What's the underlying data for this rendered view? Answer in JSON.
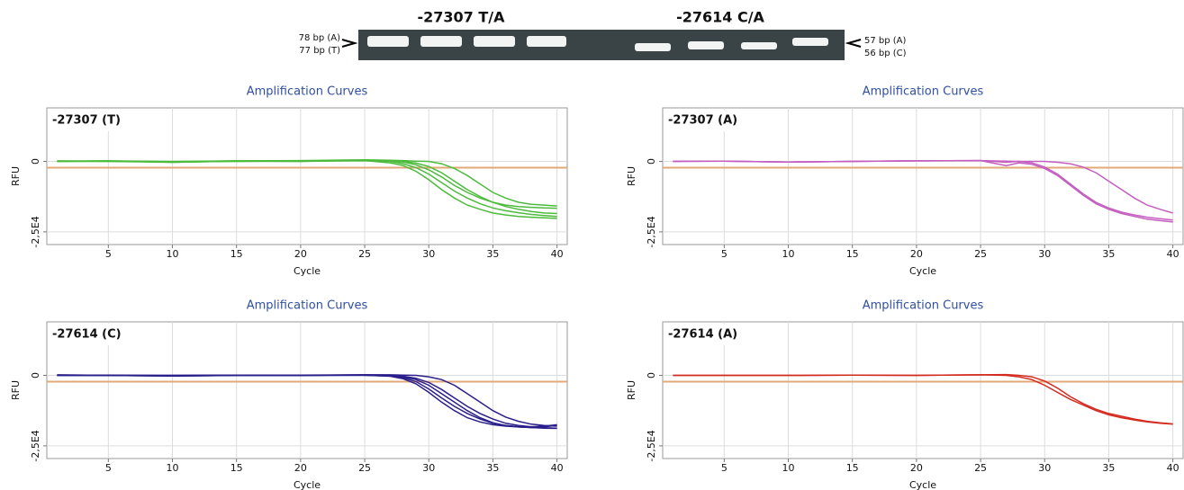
{
  "gel": {
    "headings": [
      "-27307 T/A",
      "-27614 C/A"
    ],
    "left_labels": [
      "78 bp (A)",
      "77 bp (T)"
    ],
    "right_labels": [
      "57 bp (A)",
      "56 bp (C)"
    ]
  },
  "chart_data": [
    {
      "type": "line",
      "title": "Amplification Curves",
      "label": "-27307 (T)",
      "xlabel": "Cycle",
      "ylabel": "RFU",
      "x": [
        1,
        5,
        10,
        15,
        20,
        25,
        27,
        28,
        29,
        30,
        31,
        32,
        33,
        34,
        35,
        36,
        37,
        38,
        39,
        40
      ],
      "xlim": [
        0.2,
        40.8
      ],
      "xticks": [
        5,
        10,
        15,
        20,
        25,
        30,
        35,
        40
      ],
      "ylim": [
        -29500,
        19000
      ],
      "yticks": [
        0,
        {
          "value": -25000,
          "label": "-2,5E4"
        }
      ],
      "threshold": -2200,
      "threshold_color": "#e2a878",
      "grid": true,
      "series": [
        {
          "color": "#4cbb3c",
          "values": [
            0,
            200,
            -300,
            100,
            0,
            300,
            -500,
            -1500,
            -3500,
            -6500,
            -10000,
            -13000,
            -15500,
            -17000,
            -18300,
            -19000,
            -19500,
            -19800,
            -20000,
            -20200
          ]
        },
        {
          "color": "#4cbb3c",
          "values": [
            0,
            100,
            -200,
            200,
            100,
            400,
            0,
            -800,
            -2200,
            -4500,
            -7500,
            -10500,
            -13000,
            -15000,
            -16500,
            -17500,
            -18200,
            -18800,
            -19200,
            -19500
          ]
        },
        {
          "color": "#4cbb3c",
          "values": [
            200,
            0,
            -100,
            0,
            200,
            200,
            300,
            -200,
            -1200,
            -3000,
            -5500,
            -8500,
            -11000,
            -13000,
            -14500,
            -15500,
            -16000,
            -16300,
            -16500,
            -16600
          ]
        },
        {
          "color": "#4cbb3c",
          "values": [
            0,
            0,
            -300,
            100,
            0,
            500,
            200,
            0,
            -600,
            -1800,
            -4000,
            -7000,
            -10000,
            -12500,
            -14500,
            -16000,
            -17000,
            -17800,
            -18300,
            -18500
          ]
        },
        {
          "color": "#4cbb3c",
          "values": [
            100,
            200,
            0,
            200,
            300,
            600,
            400,
            300,
            100,
            0,
            -800,
            -2500,
            -5000,
            -8000,
            -11000,
            -13000,
            -14500,
            -15200,
            -15500,
            -15800
          ]
        }
      ]
    },
    {
      "type": "line",
      "title": "Amplification Curves",
      "label": "-27307 (A)",
      "xlabel": "Cycle",
      "ylabel": "RFU",
      "x": [
        1,
        5,
        10,
        15,
        20,
        25,
        27,
        28,
        29,
        30,
        31,
        32,
        33,
        34,
        35,
        36,
        37,
        38,
        39,
        40
      ],
      "xlim": [
        0.2,
        40.8
      ],
      "xticks": [
        5,
        10,
        15,
        20,
        25,
        30,
        35,
        40
      ],
      "ylim": [
        -29500,
        19000
      ],
      "yticks": [
        0,
        {
          "value": -25000,
          "label": "-2,5E4"
        }
      ],
      "threshold": -2200,
      "threshold_color": "#e2a878",
      "grid": true,
      "series": [
        {
          "color": "#c45ec0",
          "values": [
            0,
            100,
            -200,
            0,
            200,
            300,
            -300,
            0,
            -500,
            -2000,
            -4500,
            -8000,
            -11500,
            -14500,
            -16500,
            -18000,
            -19000,
            -19800,
            -20300,
            -20800
          ]
        },
        {
          "color": "#c45ec0",
          "values": [
            0,
            100,
            -200,
            0,
            200,
            300,
            -1500,
            -500,
            -1000,
            -2500,
            -5000,
            -8500,
            -12000,
            -15000,
            -17000,
            -18500,
            -19500,
            -20500,
            -21000,
            -21500
          ]
        },
        {
          "color": "#c45ec0",
          "values": [
            0,
            100,
            -200,
            0,
            200,
            300,
            100,
            0,
            0,
            0,
            -300,
            -800,
            -2000,
            -4000,
            -7000,
            -10000,
            -13000,
            -15500,
            -17000,
            -18300
          ]
        }
      ]
    },
    {
      "type": "line",
      "title": "Amplification Curves",
      "label": "-27614 (C)",
      "xlabel": "Cycle",
      "ylabel": "RFU",
      "x": [
        1,
        5,
        10,
        15,
        20,
        25,
        27,
        28,
        29,
        30,
        31,
        32,
        33,
        34,
        35,
        36,
        37,
        38,
        39,
        40
      ],
      "xlim": [
        0.2,
        40.8
      ],
      "xticks": [
        5,
        10,
        15,
        20,
        25,
        30,
        35,
        40
      ],
      "ylim": [
        -29500,
        19000
      ],
      "yticks": [
        0,
        {
          "value": -25000,
          "label": "-2,5E4"
        }
      ],
      "threshold": -2200,
      "threshold_color": "#e2a878",
      "grid": true,
      "series": [
        {
          "color": "#2a1f8a",
          "values": [
            0,
            0,
            -200,
            0,
            0,
            100,
            -300,
            -1200,
            -3000,
            -6000,
            -9500,
            -12500,
            -15000,
            -16500,
            -17500,
            -18000,
            -18300,
            -18500,
            -18700,
            -18800
          ]
        },
        {
          "color": "#2a1f8a",
          "values": [
            0,
            100,
            -100,
            0,
            0,
            0,
            -200,
            -800,
            -2200,
            -4800,
            -8000,
            -11000,
            -13500,
            -15500,
            -17000,
            -17800,
            -18300,
            -18500,
            -18600,
            -18700
          ]
        },
        {
          "color": "#2a1f8a",
          "values": [
            200,
            0,
            0,
            100,
            0,
            100,
            0,
            -500,
            -1500,
            -3500,
            -6500,
            -9500,
            -12500,
            -15000,
            -16800,
            -17800,
            -18200,
            -18500,
            -18200,
            -17800
          ]
        },
        {
          "color": "#2a1f8a",
          "values": [
            0,
            0,
            -200,
            0,
            100,
            200,
            100,
            -300,
            -1000,
            -2500,
            -5000,
            -8000,
            -11000,
            -13500,
            -15500,
            -17000,
            -17800,
            -18200,
            -18000,
            -17500
          ]
        },
        {
          "color": "#2a1f8a",
          "values": [
            100,
            0,
            0,
            100,
            0,
            200,
            200,
            100,
            0,
            -500,
            -1500,
            -3500,
            -6500,
            -9500,
            -12500,
            -14800,
            -16300,
            -17300,
            -17800,
            -18000
          ]
        }
      ]
    },
    {
      "type": "line",
      "title": "Amplification Curves",
      "label": "-27614 (A)",
      "xlabel": "Cycle",
      "ylabel": "RFU",
      "x": [
        1,
        5,
        10,
        15,
        20,
        25,
        27,
        28,
        29,
        30,
        31,
        32,
        33,
        34,
        35,
        36,
        37,
        38,
        39,
        40
      ],
      "xlim": [
        0.2,
        40.8
      ],
      "xticks": [
        5,
        10,
        15,
        20,
        25,
        30,
        35,
        40
      ],
      "ylim": [
        -29500,
        19000
      ],
      "yticks": [
        0,
        {
          "value": -25000,
          "label": "-2,5E4"
        }
      ],
      "threshold": -2200,
      "threshold_color": "#e2a878",
      "grid": true,
      "series": [
        {
          "color": "#d42a1e",
          "values": [
            0,
            0,
            0,
            100,
            0,
            200,
            0,
            -500,
            -1500,
            -3500,
            -6000,
            -8500,
            -10500,
            -12500,
            -14000,
            -15000,
            -15800,
            -16500,
            -17000,
            -17300
          ]
        },
        {
          "color": "#d42a1e",
          "values": [
            0,
            0,
            0,
            100,
            0,
            200,
            300,
            0,
            -500,
            -2000,
            -4500,
            -7500,
            -10000,
            -12000,
            -13500,
            -14500,
            -15500,
            -16300,
            -16800,
            -17200
          ]
        }
      ]
    }
  ]
}
